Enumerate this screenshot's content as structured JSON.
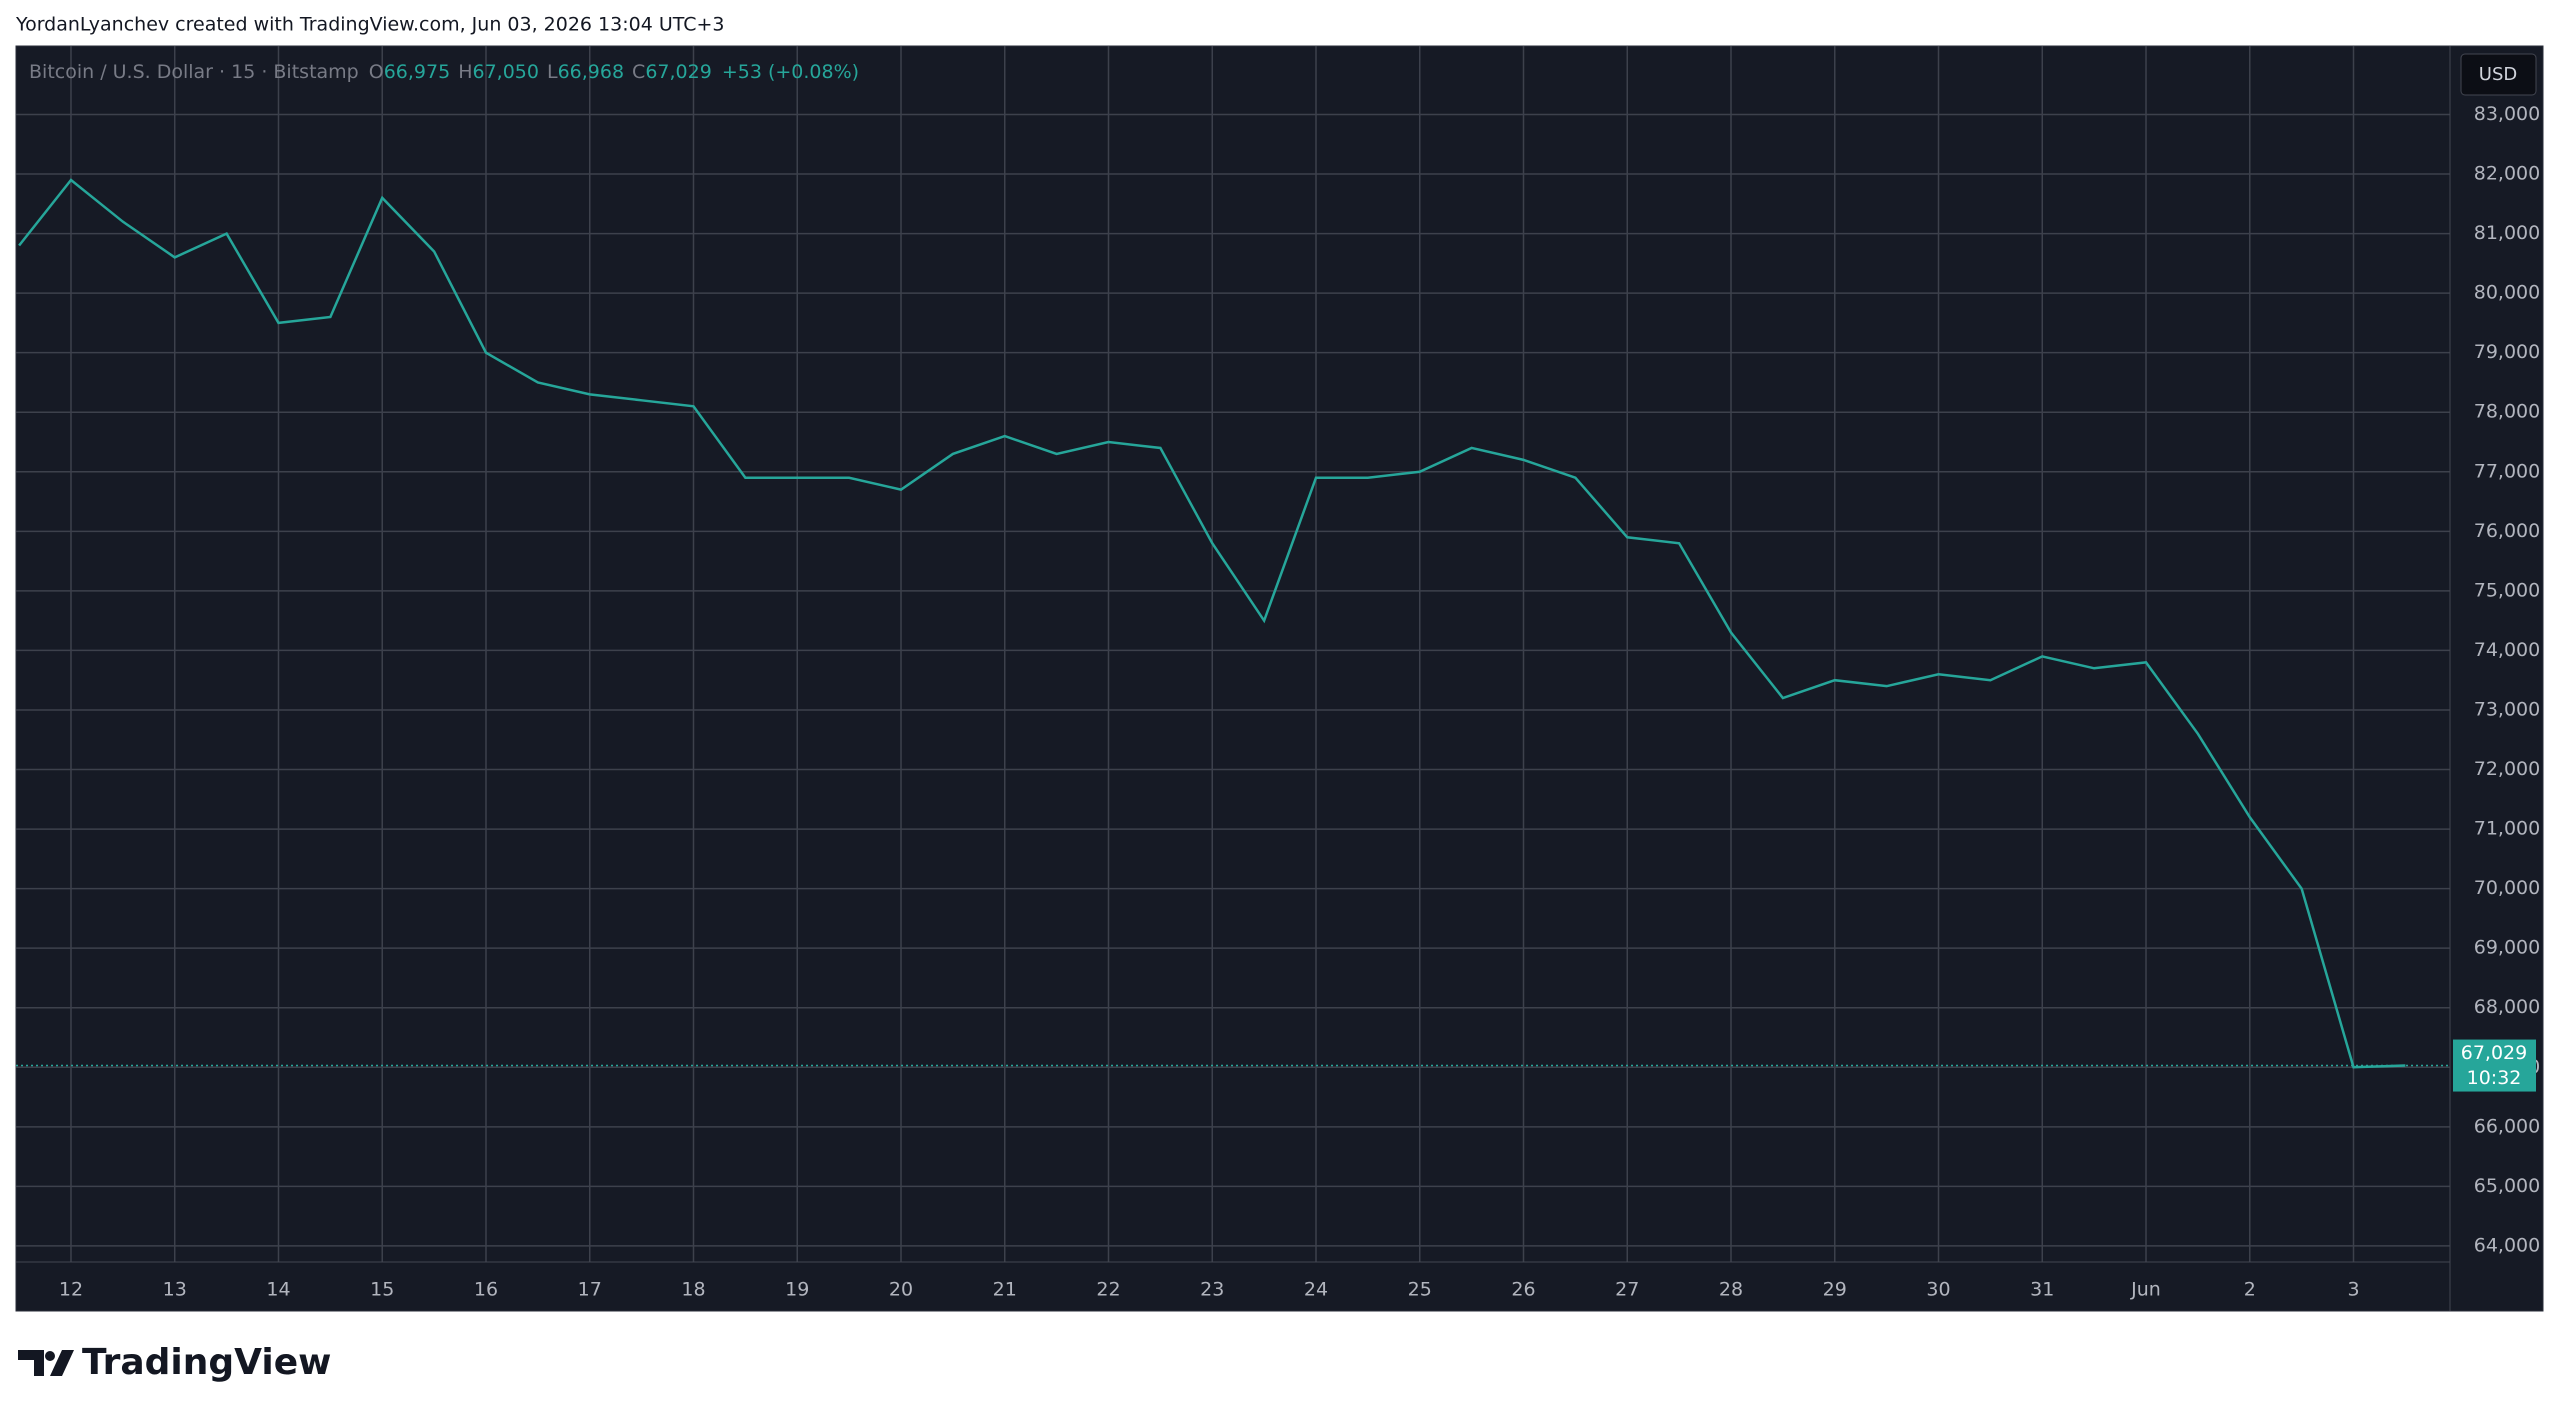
{
  "header": "YordanLyanchev created with TradingView.com, Jun 03, 2026 13:04 UTC+3",
  "brand": "TradingView",
  "chart_data": {
    "type": "line",
    "currency": "USD",
    "ohlc": [
      {
        "key": "O",
        "text": "66,975"
      },
      {
        "key": "H",
        "text": "67,050"
      },
      {
        "key": "L",
        "text": "66,968"
      },
      {
        "key": "C",
        "text": "67,029"
      }
    ],
    "change": "+53 (+0.08%)",
    "last_price": {
      "value": 67029,
      "label": "67,029"
    },
    "countdown": "10:32",
    "grid": true,
    "series": [
      {
        "name": "Bitcoin / U.S. Dollar · 15 · Bitstamp",
        "color": "#26a69a",
        "x": [
          -0.5,
          0,
          0.5,
          1,
          1.5,
          2,
          2.5,
          3,
          3.5,
          4,
          4.5,
          5,
          5.5,
          6,
          6.5,
          7,
          7.5,
          8,
          8.5,
          9,
          9.5,
          10,
          10.5,
          11,
          11.5,
          12,
          12.5,
          13,
          13.5,
          14,
          14.5,
          15,
          15.5,
          16,
          16.5,
          17,
          17.5,
          18,
          18.5,
          19,
          19.5,
          20,
          20.5,
          21,
          21.5,
          22,
          22.5
        ],
        "values": [
          80800,
          81900,
          81200,
          80600,
          81000,
          79500,
          79600,
          81600,
          80700,
          79000,
          78500,
          78300,
          78200,
          78100,
          76900,
          76900,
          76900,
          76700,
          77300,
          77600,
          77300,
          77500,
          77400,
          75800,
          74500,
          76900,
          76900,
          77000,
          77400,
          77200,
          76900,
          75900,
          75800,
          74300,
          73200,
          73500,
          73400,
          73600,
          73500,
          73900,
          73700,
          73800,
          72600,
          71200,
          70000,
          67000,
          67029
        ]
      }
    ],
    "xlim": [
      -0.53,
      22.93
    ],
    "ylim": [
      63730,
      84150
    ],
    "xticks": [
      {
        "value": 0,
        "label": "12"
      },
      {
        "value": 1,
        "label": "13"
      },
      {
        "value": 2,
        "label": "14"
      },
      {
        "value": 3,
        "label": "15"
      },
      {
        "value": 4,
        "label": "16"
      },
      {
        "value": 5,
        "label": "17"
      },
      {
        "value": 6,
        "label": "18"
      },
      {
        "value": 7,
        "label": "19"
      },
      {
        "value": 8,
        "label": "20"
      },
      {
        "value": 9,
        "label": "21"
      },
      {
        "value": 10,
        "label": "22"
      },
      {
        "value": 11,
        "label": "23"
      },
      {
        "value": 12,
        "label": "24"
      },
      {
        "value": 13,
        "label": "25"
      },
      {
        "value": 14,
        "label": "26"
      },
      {
        "value": 15,
        "label": "27"
      },
      {
        "value": 16,
        "label": "28"
      },
      {
        "value": 17,
        "label": "29"
      },
      {
        "value": 18,
        "label": "30"
      },
      {
        "value": 19,
        "label": "31"
      },
      {
        "value": 20,
        "label": "Jun"
      },
      {
        "value": 21,
        "label": "2"
      },
      {
        "value": 22,
        "label": "3"
      }
    ],
    "yticks": [
      {
        "value": 64000,
        "label": "64,000"
      },
      {
        "value": 65000,
        "label": "65,000"
      },
      {
        "value": 66000,
        "label": "66,000"
      },
      {
        "value": 67000,
        "label": "67,000"
      },
      {
        "value": 68000,
        "label": "68,000"
      },
      {
        "value": 69000,
        "label": "69,000"
      },
      {
        "value": 70000,
        "label": "70,000"
      },
      {
        "value": 71000,
        "label": "71,000"
      },
      {
        "value": 72000,
        "label": "72,000"
      },
      {
        "value": 73000,
        "label": "73,000"
      },
      {
        "value": 74000,
        "label": "74,000"
      },
      {
        "value": 75000,
        "label": "75,000"
      },
      {
        "value": 76000,
        "label": "76,000"
      },
      {
        "value": 77000,
        "label": "77,000"
      },
      {
        "value": 78000,
        "label": "78,000"
      },
      {
        "value": 79000,
        "label": "79,000"
      },
      {
        "value": 80000,
        "label": "80,000"
      },
      {
        "value": 81000,
        "label": "81,000"
      },
      {
        "value": 82000,
        "label": "82,000"
      },
      {
        "value": 83000,
        "label": "83,000"
      }
    ]
  }
}
